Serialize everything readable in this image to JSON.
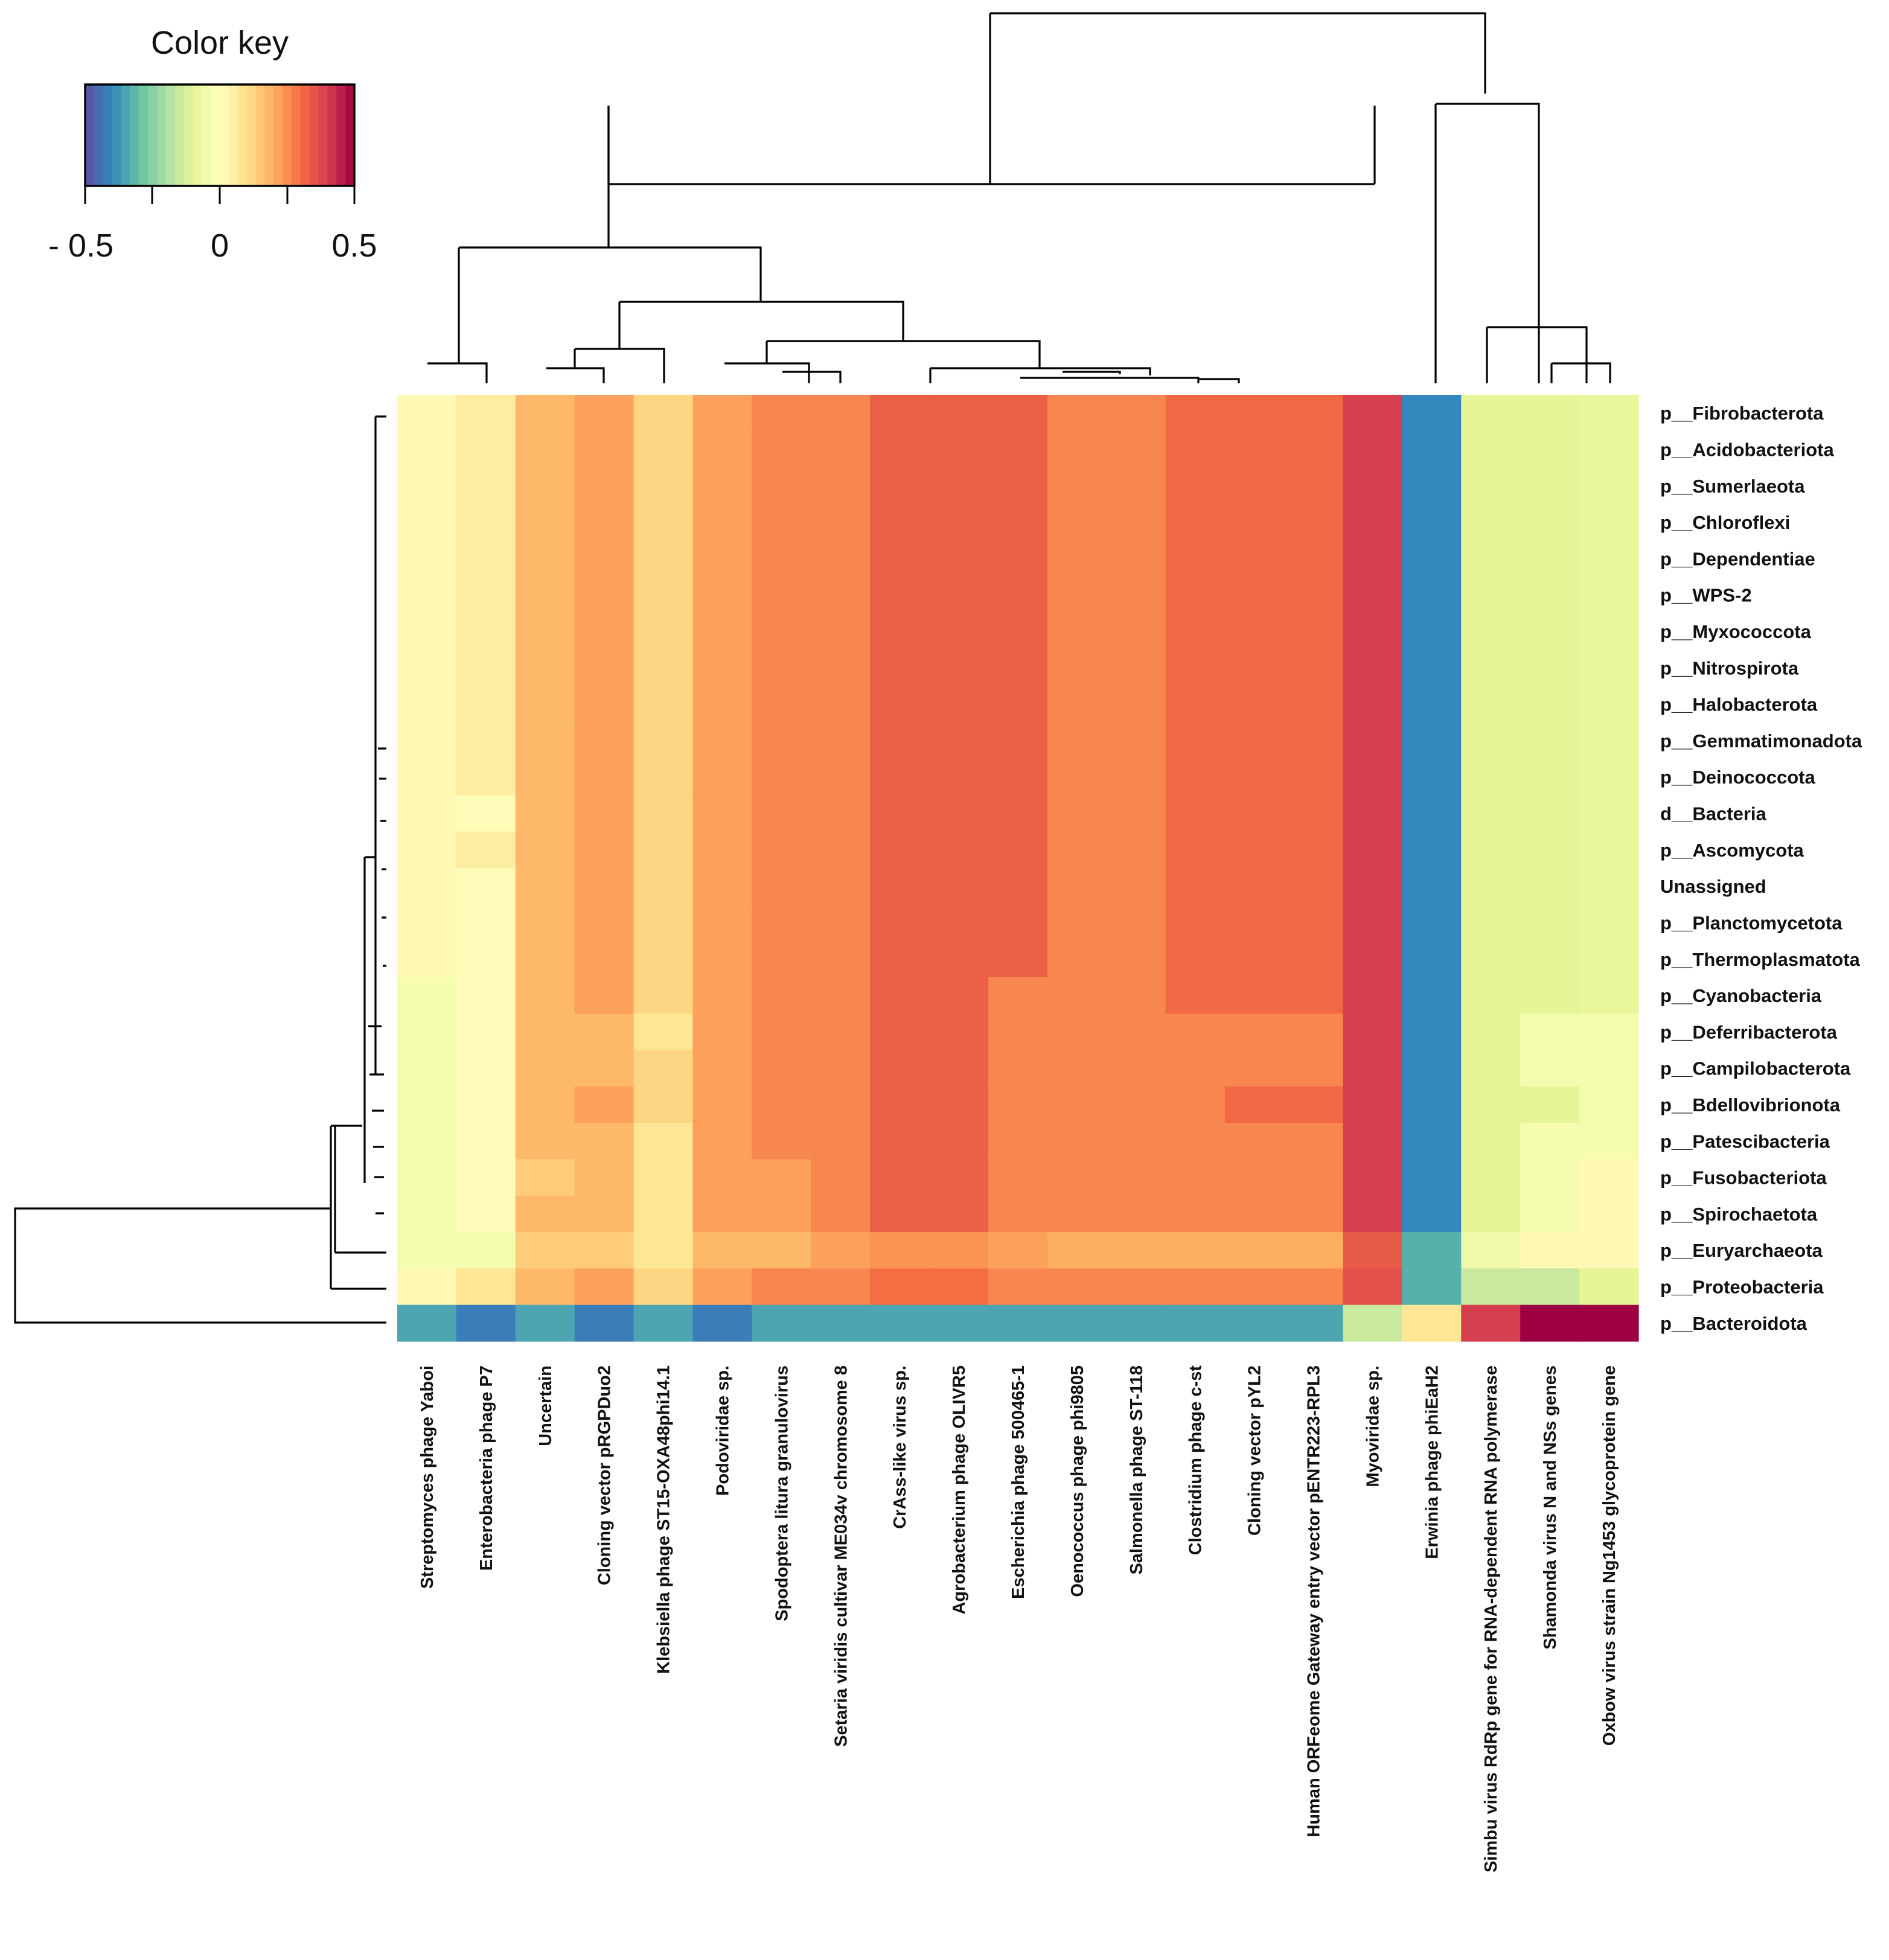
{
  "chart_data": {
    "type": "heatmap",
    "title": "",
    "color_key": {
      "title": "Color key",
      "min": -0.5,
      "max": 0.5,
      "tick_values": [
        -0.5,
        -0.25,
        0,
        0.25,
        0.5
      ],
      "tick_labels": [
        "- 0.5",
        "0",
        "0.5"
      ],
      "labeled_tick_values": [
        -0.5,
        0,
        0.5
      ],
      "palette": [
        "#5E4FA2",
        "#3288BD",
        "#66C2A5",
        "#ABDDA4",
        "#E6F598",
        "#FFFFBF",
        "#FEE08B",
        "#FDAE61",
        "#F46D43",
        "#D53E4F",
        "#9E0142"
      ]
    },
    "columns": [
      "Streptomyces phage Yaboi",
      "Enterobacteria phage P7",
      "Uncertain",
      "Cloning vector pRGPDuo2",
      "Klebsiella phage ST15-OXA48phi14.1",
      "Podoviridae sp.",
      "Spodoptera litura granulovirus",
      "Setaria viridis cultivar ME034v chromosome 8",
      "CrAss-like virus sp.",
      "Agrobacterium phage OLIVR5",
      "Escherichia phage 500465-1",
      "Oenococcus phage phi9805",
      "Salmonella phage ST-118",
      "Clostridium phage c-st",
      "Cloning vector pYL2",
      "Human ORFeome Gateway entry vector pENTR223-RPL3",
      "Myoviridae sp.",
      "Erwinia phage phiEaH2",
      "Simbu virus RdRp gene for RNA-dependent RNA polymerase",
      "Shamonda virus N and NSs genes",
      "Oxbow virus strain Ng1453 glycoprotein gene"
    ],
    "rows": [
      "p__Fibrobacterota",
      "p__Acidobacteriota",
      "p__Sumerlaeota",
      "p__Chloroflexi",
      "p__Dependentiae",
      "p__WPS-2",
      "p__Myxococcota",
      "p__Nitrospirota",
      "p__Halobacterota",
      "p__Gemmatimonadota",
      "p__Deinococcota",
      "d__Bacteria",
      "p__Ascomycota",
      "Unassigned",
      "p__Planctomycetota",
      "p__Thermoplasmatota",
      "p__Cyanobacteria",
      "p__Deferribacterota",
      "p__Campilobacterota",
      "p__Bdellovibrionota",
      "p__Patescibacteria",
      "p__Fusobacteriota",
      "p__Spirochaetota",
      "p__Euryarchaeota",
      "p__Proteobacteria",
      "p__Bacteroidota"
    ],
    "values": [
      [
        0.02,
        0.06,
        0.18,
        0.22,
        0.12,
        0.22,
        0.26,
        0.26,
        0.33,
        0.33,
        0.33,
        0.26,
        0.26,
        0.31,
        0.31,
        0.31,
        0.4,
        -0.4,
        -0.1,
        -0.1,
        -0.09
      ],
      [
        0.02,
        0.06,
        0.18,
        0.22,
        0.12,
        0.22,
        0.26,
        0.26,
        0.33,
        0.33,
        0.33,
        0.26,
        0.26,
        0.31,
        0.31,
        0.31,
        0.4,
        -0.4,
        -0.1,
        -0.1,
        -0.09
      ],
      [
        0.02,
        0.06,
        0.18,
        0.22,
        0.12,
        0.22,
        0.26,
        0.26,
        0.33,
        0.33,
        0.33,
        0.26,
        0.26,
        0.31,
        0.31,
        0.31,
        0.4,
        -0.4,
        -0.1,
        -0.1,
        -0.09
      ],
      [
        0.02,
        0.06,
        0.18,
        0.22,
        0.12,
        0.22,
        0.26,
        0.26,
        0.33,
        0.33,
        0.33,
        0.26,
        0.26,
        0.31,
        0.31,
        0.31,
        0.4,
        -0.4,
        -0.1,
        -0.1,
        -0.09
      ],
      [
        0.02,
        0.06,
        0.18,
        0.22,
        0.12,
        0.22,
        0.26,
        0.26,
        0.33,
        0.33,
        0.33,
        0.26,
        0.26,
        0.31,
        0.31,
        0.31,
        0.4,
        -0.4,
        -0.1,
        -0.1,
        -0.09
      ],
      [
        0.02,
        0.06,
        0.18,
        0.22,
        0.12,
        0.22,
        0.26,
        0.26,
        0.33,
        0.33,
        0.33,
        0.26,
        0.26,
        0.31,
        0.31,
        0.31,
        0.4,
        -0.4,
        -0.1,
        -0.1,
        -0.09
      ],
      [
        0.02,
        0.06,
        0.18,
        0.22,
        0.12,
        0.22,
        0.26,
        0.26,
        0.33,
        0.33,
        0.33,
        0.26,
        0.26,
        0.31,
        0.31,
        0.31,
        0.4,
        -0.4,
        -0.1,
        -0.1,
        -0.09
      ],
      [
        0.02,
        0.06,
        0.18,
        0.22,
        0.12,
        0.22,
        0.26,
        0.26,
        0.33,
        0.33,
        0.33,
        0.26,
        0.26,
        0.31,
        0.31,
        0.31,
        0.4,
        -0.4,
        -0.1,
        -0.1,
        -0.09
      ],
      [
        0.02,
        0.06,
        0.18,
        0.22,
        0.12,
        0.22,
        0.26,
        0.26,
        0.33,
        0.33,
        0.33,
        0.26,
        0.26,
        0.31,
        0.31,
        0.31,
        0.4,
        -0.4,
        -0.1,
        -0.1,
        -0.09
      ],
      [
        0.02,
        0.06,
        0.18,
        0.22,
        0.12,
        0.22,
        0.26,
        0.26,
        0.33,
        0.33,
        0.33,
        0.26,
        0.26,
        0.31,
        0.31,
        0.31,
        0.4,
        -0.4,
        -0.1,
        -0.1,
        -0.09
      ],
      [
        0.02,
        0.06,
        0.18,
        0.22,
        0.12,
        0.22,
        0.26,
        0.26,
        0.33,
        0.33,
        0.33,
        0.26,
        0.26,
        0.31,
        0.31,
        0.31,
        0.4,
        -0.4,
        -0.1,
        -0.1,
        -0.09
      ],
      [
        0.02,
        0.01,
        0.18,
        0.22,
        0.12,
        0.22,
        0.26,
        0.26,
        0.33,
        0.33,
        0.33,
        0.26,
        0.26,
        0.31,
        0.31,
        0.31,
        0.4,
        -0.4,
        -0.1,
        -0.1,
        -0.09
      ],
      [
        0.02,
        0.06,
        0.18,
        0.22,
        0.12,
        0.22,
        0.26,
        0.26,
        0.33,
        0.33,
        0.33,
        0.26,
        0.26,
        0.31,
        0.31,
        0.31,
        0.4,
        -0.4,
        -0.1,
        -0.1,
        -0.09
      ],
      [
        0.02,
        0.01,
        0.18,
        0.22,
        0.12,
        0.22,
        0.26,
        0.26,
        0.33,
        0.33,
        0.33,
        0.26,
        0.26,
        0.31,
        0.31,
        0.31,
        0.4,
        -0.4,
        -0.1,
        -0.1,
        -0.09
      ],
      [
        0.02,
        0.01,
        0.18,
        0.22,
        0.12,
        0.22,
        0.26,
        0.26,
        0.33,
        0.33,
        0.33,
        0.26,
        0.26,
        0.31,
        0.31,
        0.31,
        0.4,
        -0.4,
        -0.1,
        -0.1,
        -0.09
      ],
      [
        0.02,
        0.01,
        0.18,
        0.22,
        0.12,
        0.22,
        0.26,
        0.26,
        0.33,
        0.33,
        0.33,
        0.26,
        0.26,
        0.31,
        0.31,
        0.31,
        0.4,
        -0.4,
        -0.1,
        -0.1,
        -0.09
      ],
      [
        -0.04,
        0.01,
        0.18,
        0.22,
        0.12,
        0.22,
        0.26,
        0.26,
        0.33,
        0.33,
        0.26,
        0.26,
        0.26,
        0.31,
        0.31,
        0.31,
        0.4,
        -0.4,
        -0.1,
        -0.1,
        -0.09
      ],
      [
        -0.04,
        0.01,
        0.18,
        0.18,
        0.08,
        0.22,
        0.26,
        0.26,
        0.33,
        0.33,
        0.26,
        0.26,
        0.26,
        0.26,
        0.26,
        0.26,
        0.4,
        -0.4,
        -0.1,
        -0.04,
        -0.04
      ],
      [
        -0.04,
        0.01,
        0.18,
        0.18,
        0.12,
        0.22,
        0.26,
        0.26,
        0.33,
        0.33,
        0.26,
        0.26,
        0.26,
        0.26,
        0.26,
        0.26,
        0.4,
        -0.4,
        -0.1,
        -0.04,
        -0.04
      ],
      [
        -0.04,
        0.01,
        0.18,
        0.22,
        0.12,
        0.22,
        0.26,
        0.26,
        0.33,
        0.33,
        0.26,
        0.26,
        0.26,
        0.26,
        0.31,
        0.31,
        0.4,
        -0.4,
        -0.1,
        -0.1,
        -0.04
      ],
      [
        -0.04,
        0.01,
        0.18,
        0.18,
        0.08,
        0.22,
        0.26,
        0.26,
        0.33,
        0.33,
        0.26,
        0.26,
        0.26,
        0.26,
        0.26,
        0.26,
        0.4,
        -0.4,
        -0.1,
        -0.04,
        -0.04
      ],
      [
        -0.04,
        0.01,
        0.14,
        0.18,
        0.08,
        0.22,
        0.22,
        0.26,
        0.33,
        0.33,
        0.26,
        0.26,
        0.26,
        0.26,
        0.26,
        0.26,
        0.4,
        -0.4,
        -0.1,
        -0.04,
        0.02
      ],
      [
        -0.04,
        0.01,
        0.18,
        0.18,
        0.08,
        0.22,
        0.22,
        0.26,
        0.33,
        0.33,
        0.26,
        0.26,
        0.26,
        0.26,
        0.26,
        0.26,
        0.4,
        -0.4,
        -0.1,
        -0.04,
        0.02
      ],
      [
        -0.04,
        -0.04,
        0.14,
        0.14,
        0.08,
        0.18,
        0.18,
        0.22,
        0.24,
        0.24,
        0.22,
        0.2,
        0.2,
        0.2,
        0.2,
        0.2,
        0.34,
        -0.33,
        -0.06,
        0.02,
        0.02
      ],
      [
        0.02,
        0.08,
        0.18,
        0.22,
        0.12,
        0.22,
        0.26,
        0.26,
        0.3,
        0.3,
        0.26,
        0.26,
        0.26,
        0.26,
        0.26,
        0.26,
        0.36,
        -0.33,
        -0.15,
        -0.15,
        -0.1
      ],
      [
        -0.35,
        -0.42,
        -0.35,
        -0.42,
        -0.35,
        -0.42,
        -0.35,
        -0.35,
        -0.35,
        -0.35,
        -0.35,
        -0.35,
        -0.35,
        -0.35,
        -0.35,
        -0.35,
        -0.15,
        0.08,
        0.4,
        0.5,
        0.5
      ]
    ]
  }
}
